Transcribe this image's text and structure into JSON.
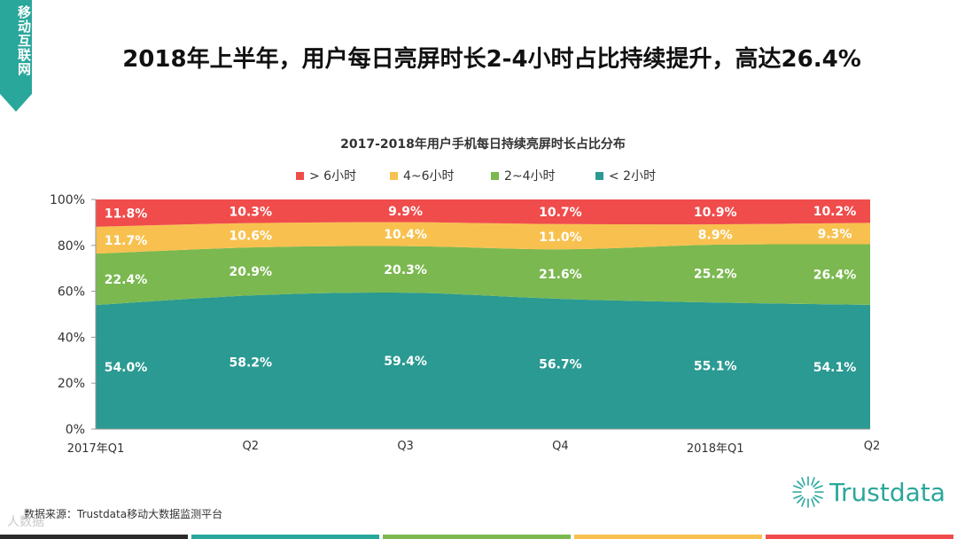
{
  "side_tab": {
    "label": "移动互联网"
  },
  "page_title": "2018年上半年，用户每日亮屏时长2-4小时占比持续提升，高达26.4%",
  "source": "数据来源：Trustdata移动大数据监测平台",
  "watermark": "人数据",
  "logo": {
    "text": "Trustdata"
  },
  "colors": {
    "brand": "#2aa79b",
    "lt2": "#2a9a92",
    "h2to4": "#7bb850",
    "h4to6": "#f8c14f",
    "gt6": "#f04c4c",
    "footer": [
      "#2b2b2b",
      "#2aa79b",
      "#7bb850",
      "#f8c14f",
      "#f04c4c"
    ]
  },
  "chart_data": {
    "type": "area",
    "stacked": true,
    "title": "2017-2018年用户手机每日持续亮屏时长占比分布",
    "categories": [
      "2017年Q1",
      "Q2",
      "Q3",
      "Q4",
      "2018年Q1",
      "Q2"
    ],
    "yticks": [
      "0%",
      "20%",
      "40%",
      "60%",
      "80%",
      "100%"
    ],
    "ylim": [
      0,
      100
    ],
    "legend_position": "top",
    "series": [
      {
        "name": "< 2小时",
        "color": "#2a9a92",
        "values": [
          54.0,
          58.2,
          59.4,
          56.7,
          55.1,
          54.1
        ],
        "labels": [
          "54.0%",
          "58.2%",
          "59.4%",
          "56.7%",
          "55.1%",
          "54.1%"
        ]
      },
      {
        "name": "2~4小时",
        "color": "#7bb850",
        "values": [
          22.4,
          20.9,
          20.3,
          21.6,
          25.2,
          26.4
        ],
        "labels": [
          "22.4%",
          "20.9%",
          "20.3%",
          "21.6%",
          "25.2%",
          "26.4%"
        ]
      },
      {
        "name": "4~6小时",
        "color": "#f8c14f",
        "values": [
          11.7,
          10.6,
          10.4,
          11.0,
          8.9,
          9.3
        ],
        "labels": [
          "11.7%",
          "10.6%",
          "10.4%",
          "11.0%",
          "8.9%",
          "9.3%"
        ]
      },
      {
        "name": "> 6小时",
        "color": "#f04c4c",
        "values": [
          11.8,
          10.3,
          9.9,
          10.7,
          10.9,
          10.2
        ],
        "labels": [
          "11.8%",
          "10.3%",
          "9.9%",
          "10.7%",
          "10.9%",
          "10.2%"
        ]
      }
    ],
    "legend_order": [
      "> 6小时",
      "4~6小时",
      "2~4小时",
      "< 2小时"
    ]
  }
}
